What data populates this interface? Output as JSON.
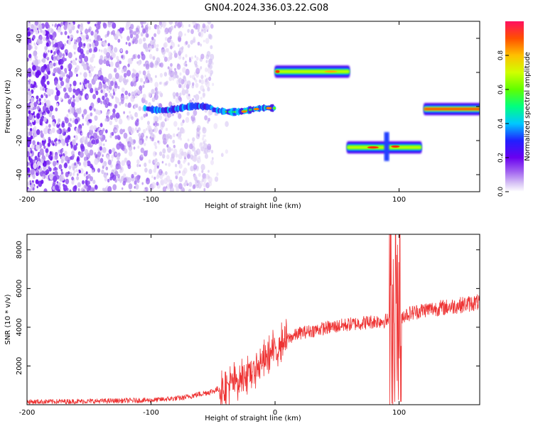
{
  "title": "GN04.2024.336.03.22.G08",
  "colorbar": {
    "label": "Normalized spectral amplitude",
    "ticks": [
      "0.0",
      "0.2",
      "0.4",
      "0.6",
      "0.8"
    ],
    "range": [
      0,
      1
    ]
  },
  "chart_data": [
    {
      "type": "heatmap",
      "xlabel": "Height of straight line (km)",
      "ylabel": "Frequency (Hz)",
      "xlim": [
        -200,
        165
      ],
      "ylim": [
        -50,
        50
      ],
      "xticks": [
        -200,
        -100,
        0,
        100
      ],
      "yticks": [
        -40,
        -20,
        0,
        20,
        40
      ],
      "colormap": "rainbow (white-purple-blue-cyan-green-yellow-red)",
      "features": [
        {
          "x_range": [
            -200,
            -55
          ],
          "freq_hz": "broadband -50..50",
          "amplitude": "low (noise)"
        },
        {
          "x_range": [
            -105,
            0
          ],
          "freq_hz": [
            -3,
            0
          ],
          "amplitude": "medium-high"
        },
        {
          "x_range": [
            0,
            60
          ],
          "freq_hz": 20.5,
          "amplitude": "high"
        },
        {
          "x_range": [
            58,
            118
          ],
          "freq_hz": -24,
          "amplitude": "high"
        },
        {
          "x_range": [
            120,
            165
          ],
          "freq_hz": -1.5,
          "amplitude": "max"
        }
      ]
    },
    {
      "type": "line",
      "xlabel": "Height of straight line (km)",
      "ylabel": "SNR (10 * v/v)",
      "xlim": [
        -200,
        165
      ],
      "ylim": [
        0,
        8800
      ],
      "xticks": [
        -200,
        -100,
        0,
        100
      ],
      "yticks": [
        2000,
        4000,
        6000,
        8000
      ],
      "color": "#ee3333",
      "series": [
        {
          "x": [
            -200,
            -150,
            -100,
            -75,
            -50,
            -35,
            -20,
            -10,
            0,
            10,
            20,
            40,
            60,
            80,
            90,
            95,
            100,
            105,
            120,
            140,
            165
          ],
          "y": [
            150,
            180,
            230,
            350,
            700,
            1100,
            1700,
            2200,
            2900,
            3400,
            3700,
            3950,
            4150,
            4300,
            4350,
            4400,
            4500,
            4650,
            4900,
            5050,
            5300
          ]
        }
      ]
    }
  ]
}
